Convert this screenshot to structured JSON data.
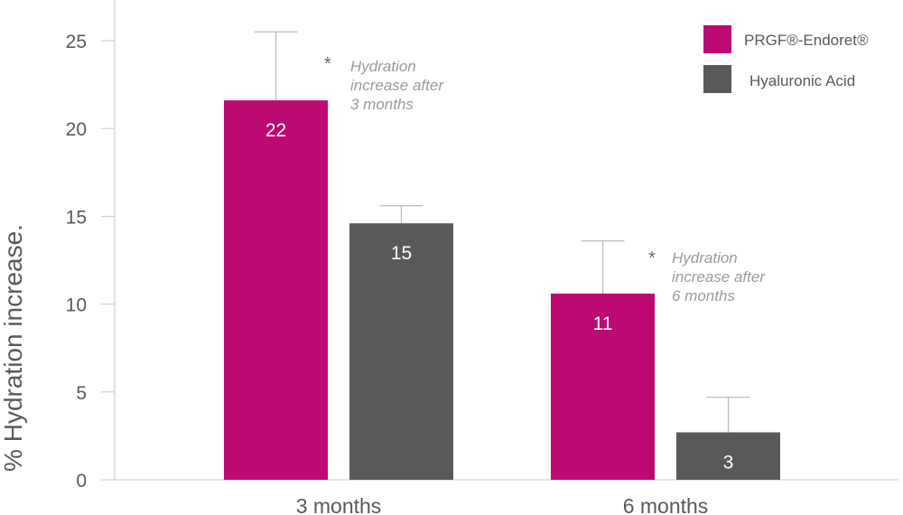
{
  "chart_data": {
    "type": "bar",
    "ylabel": "% Hydration increase.",
    "xlabel": "",
    "ylim": [
      0,
      25
    ],
    "yticks": [
      0,
      5,
      10,
      15,
      20,
      25
    ],
    "categories": [
      "3 months",
      "6 months"
    ],
    "series": [
      {
        "name": "PRGF®-Endoret®",
        "color": "#bc0a72",
        "values": [
          21.6,
          10.6
        ],
        "error_upper": [
          25.5,
          13.6
        ],
        "labels": [
          "22",
          "11"
        ]
      },
      {
        "name": "Hyaluronic Acid",
        "color": "#575a59",
        "values": [
          14.6,
          2.7
        ],
        "error_upper": [
          15.6,
          4.7
        ],
        "labels": [
          "15",
          "3"
        ]
      }
    ],
    "annotations": [
      {
        "category": "3 months",
        "marker": "*",
        "lines": [
          "Hydration",
          "increase after",
          "3 months"
        ]
      },
      {
        "category": "6 months",
        "marker": "*",
        "lines": [
          "Hydration",
          "increase after",
          "6 months"
        ]
      }
    ],
    "legend_position": "top-right",
    "grid": false
  }
}
